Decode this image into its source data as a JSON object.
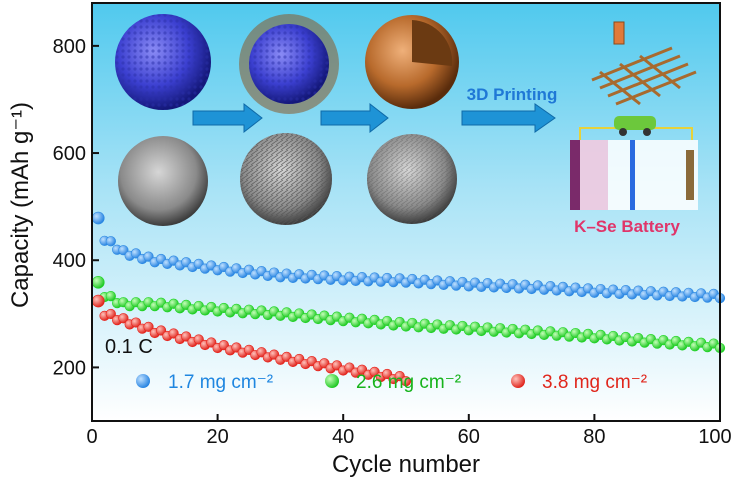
{
  "chart_data": {
    "type": "scatter",
    "xlabel": "Cycle number",
    "ylabel": "Capacity (mAh g⁻¹)",
    "xlim": [
      0,
      100
    ],
    "ylim": [
      100,
      880
    ],
    "xticks": [
      0,
      20,
      40,
      60,
      80,
      100
    ],
    "yticks": [
      200,
      400,
      600,
      800
    ],
    "xtick_labels": [
      "0",
      "20",
      "40",
      "60",
      "80",
      "100"
    ],
    "ytick_labels": [
      "200",
      "400",
      "600",
      "800"
    ],
    "grid": false,
    "background": "light-blue gradient",
    "annotation": "0.1 C",
    "inset_labels": {
      "printing": "3D Printing",
      "battery": "K–Se Battery"
    },
    "legend": {
      "placement": "bottom",
      "entries": [
        "1.7 mg cm⁻²",
        "2.6 mg cm⁻²",
        "3.8 mg cm⁻²"
      ]
    },
    "series": [
      {
        "name": "1.7 mg cm⁻²",
        "color": "#2f8be3",
        "x": [
          1,
          2,
          5,
          10,
          20,
          30,
          40,
          50,
          60,
          70,
          80,
          90,
          100
        ],
        "values": [
          475,
          440,
          415,
          400,
          385,
          372,
          366,
          362,
          355,
          350,
          343,
          338,
          333
        ]
      },
      {
        "name": "2.6 mg cm⁻²",
        "color": "#1fd626",
        "x": [
          1,
          2,
          5,
          10,
          20,
          30,
          40,
          50,
          60,
          70,
          80,
          90,
          100
        ],
        "values": [
          355,
          335,
          318,
          318,
          308,
          300,
          290,
          280,
          273,
          266,
          258,
          248,
          240
        ]
      },
      {
        "name": "3.8 mg cm⁻²",
        "color": "#e8231c",
        "x": [
          1,
          2,
          5,
          10,
          20,
          30,
          40,
          50
        ],
        "values": [
          320,
          300,
          288,
          268,
          240,
          218,
          198,
          178
        ]
      }
    ]
  }
}
